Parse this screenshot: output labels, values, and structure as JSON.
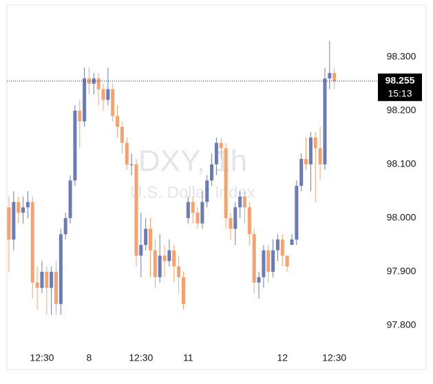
{
  "chart_data": {
    "type": "candlestick",
    "watermark_title": "DXY, 1h",
    "watermark_subtitle": "U.S. Dollar Index",
    "categories": [
      null,
      null,
      null,
      null,
      null,
      null,
      null,
      "12:30",
      null,
      null,
      null,
      null,
      null,
      null,
      null,
      null,
      null,
      "8",
      null,
      null,
      null,
      null,
      null,
      null,
      null,
      null,
      null,
      null,
      "12:30",
      null,
      null,
      null,
      null,
      null,
      null,
      null,
      null,
      null,
      "11",
      null,
      null,
      null,
      null,
      null,
      null,
      null,
      null,
      null,
      null,
      null,
      null,
      null,
      null,
      null,
      null,
      null,
      null,
      null,
      "12",
      null,
      null,
      null,
      null,
      null,
      null,
      null,
      null,
      null,
      null,
      "12:30"
    ],
    "open": [
      98.02,
      97.96,
      98.03,
      98.01,
      98.02,
      98.03,
      97.88,
      97.87,
      97.9,
      97.87,
      97.9,
      97.84,
      97.97,
      98.0,
      98.07,
      98.2,
      98.18,
      98.26,
      98.25,
      98.26,
      98.24,
      98.22,
      98.24,
      98.19,
      98.17,
      98.14,
      98.1,
      98.1,
      97.93,
      97.95,
      97.98,
      97.94,
      97.89,
      97.93,
      97.92,
      97.94,
      97.91,
      97.89,
      98.0,
      98.03,
      98.01,
      97.99,
      98.03,
      98.07,
      98.1,
      98.14,
      98.13,
      98.0,
      97.98,
      98.02,
      98.04,
      98.02,
      97.97,
      97.88,
      97.89,
      97.94,
      97.9,
      97.94,
      97.96,
      97.93,
      97.95,
      97.96,
      98.06,
      98.11,
      98.1,
      98.15,
      98.13,
      98.1,
      98.26,
      98.27
    ],
    "high": [
      98.04,
      98.05,
      98.04,
      98.04,
      98.05,
      98.04,
      97.91,
      97.92,
      97.91,
      97.91,
      97.92,
      97.98,
      98.01,
      98.08,
      98.21,
      98.22,
      98.28,
      98.28,
      98.27,
      98.27,
      98.25,
      98.28,
      98.25,
      98.21,
      98.18,
      98.15,
      98.12,
      98.11,
      98.01,
      98.0,
      98.0,
      97.96,
      97.97,
      97.95,
      97.96,
      97.95,
      97.93,
      97.9,
      98.04,
      98.04,
      98.02,
      98.05,
      98.08,
      98.12,
      98.15,
      98.15,
      98.14,
      98.01,
      98.03,
      98.05,
      98.05,
      98.03,
      97.98,
      97.9,
      97.95,
      97.95,
      97.96,
      97.97,
      97.97,
      97.93,
      97.97,
      98.07,
      98.12,
      98.15,
      98.16,
      98.16,
      98.17,
      98.28,
      98.33,
      98.28
    ],
    "low": [
      97.9,
      97.94,
      97.99,
      97.99,
      98.0,
      97.85,
      97.83,
      97.86,
      97.82,
      97.82,
      97.82,
      97.82,
      97.96,
      97.99,
      98.06,
      98.13,
      98.17,
      98.23,
      98.23,
      98.21,
      98.2,
      98.21,
      98.18,
      98.15,
      98.12,
      98.09,
      98.08,
      97.91,
      97.89,
      97.94,
      97.89,
      97.87,
      97.88,
      97.89,
      97.91,
      97.88,
      97.86,
      97.83,
      97.99,
      97.99,
      97.98,
      97.98,
      98.02,
      98.06,
      98.08,
      98.11,
      97.98,
      97.96,
      97.95,
      98.0,
      97.99,
      97.95,
      97.86,
      97.85,
      97.87,
      97.88,
      97.89,
      97.92,
      97.91,
      97.9,
      97.95,
      97.95,
      98.05,
      98.09,
      98.05,
      98.03,
      98.07,
      98.09,
      98.24,
      98.24
    ],
    "close": [
      97.96,
      98.03,
      98.01,
      98.02,
      98.03,
      97.88,
      97.87,
      97.9,
      97.87,
      97.9,
      97.84,
      97.97,
      98.0,
      98.07,
      98.2,
      98.18,
      98.26,
      98.25,
      98.26,
      98.24,
      98.22,
      98.24,
      98.19,
      98.17,
      98.14,
      98.1,
      98.1,
      97.93,
      97.95,
      97.98,
      97.94,
      97.89,
      97.93,
      97.92,
      97.94,
      97.91,
      97.89,
      97.84,
      98.03,
      98.01,
      97.99,
      98.03,
      98.07,
      98.1,
      98.14,
      98.13,
      98.0,
      97.98,
      98.02,
      98.04,
      98.02,
      97.97,
      97.88,
      97.89,
      97.94,
      97.9,
      97.94,
      97.96,
      97.93,
      97.91,
      97.96,
      98.06,
      98.11,
      98.1,
      98.15,
      98.13,
      98.1,
      98.26,
      98.27,
      98.255
    ],
    "up_color": "#6a7bb5",
    "down_color": "#f7a26c",
    "ylim": [
      97.759,
      98.397
    ],
    "yticks": [
      {
        "value": 97.8,
        "label": "97.800"
      },
      {
        "value": 97.9,
        "label": "97.900"
      },
      {
        "value": 98.0,
        "label": "98.000"
      },
      {
        "value": 98.1,
        "label": "98.100"
      },
      {
        "value": 98.2,
        "label": "98.200"
      },
      {
        "value": 98.3,
        "label": "98.300"
      }
    ],
    "last_price": 98.255,
    "countdown": "15:13"
  }
}
